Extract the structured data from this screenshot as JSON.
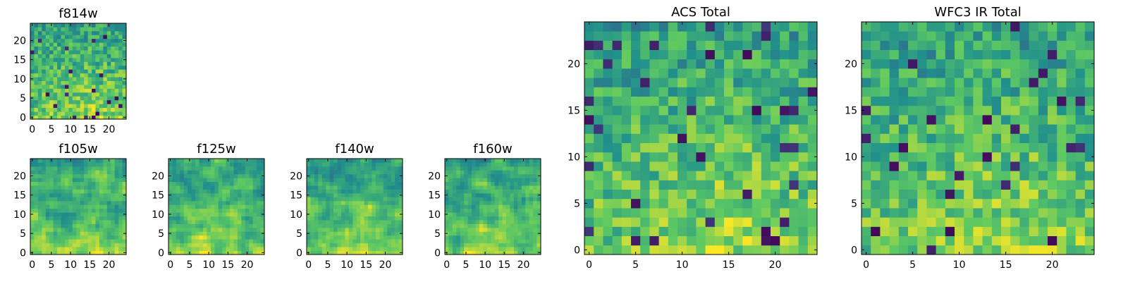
{
  "chart_data": [
    {
      "type": "heatmap",
      "title": "f814w",
      "x_ticks": [
        0,
        5,
        10,
        15,
        20
      ],
      "y_ticks": [
        0,
        5,
        10,
        15,
        20
      ],
      "xlim": [
        -0.5,
        24.5
      ],
      "ylim": [
        -0.5,
        24.5
      ],
      "grid_size": 25,
      "colormap": "viridis"
    },
    {
      "type": "heatmap",
      "title": "f105w",
      "x_ticks": [
        0,
        5,
        10,
        15,
        20
      ],
      "y_ticks": [
        0,
        5,
        10,
        15,
        20
      ],
      "xlim": [
        -0.5,
        24.5
      ],
      "ylim": [
        -0.5,
        24.5
      ],
      "grid_size": 25,
      "colormap": "viridis"
    },
    {
      "type": "heatmap",
      "title": "f125w",
      "x_ticks": [
        0,
        5,
        10,
        15,
        20
      ],
      "y_ticks": [
        0,
        5,
        10,
        15,
        20
      ],
      "xlim": [
        -0.5,
        24.5
      ],
      "ylim": [
        -0.5,
        24.5
      ],
      "grid_size": 25,
      "colormap": "viridis"
    },
    {
      "type": "heatmap",
      "title": "f140w",
      "x_ticks": [
        0,
        5,
        10,
        15,
        20
      ],
      "y_ticks": [
        0,
        5,
        10,
        15,
        20
      ],
      "xlim": [
        -0.5,
        24.5
      ],
      "ylim": [
        -0.5,
        24.5
      ],
      "grid_size": 25,
      "colormap": "viridis"
    },
    {
      "type": "heatmap",
      "title": "f160w",
      "x_ticks": [
        0,
        5,
        10,
        15,
        20
      ],
      "y_ticks": [
        0,
        5,
        10,
        15,
        20
      ],
      "xlim": [
        -0.5,
        24.5
      ],
      "ylim": [
        -0.5,
        24.5
      ],
      "grid_size": 25,
      "colormap": "viridis"
    },
    {
      "type": "heatmap",
      "title": "ACS Total",
      "x_ticks": [
        0,
        5,
        10,
        15,
        20
      ],
      "y_ticks": [
        0,
        5,
        10,
        15,
        20
      ],
      "xlim": [
        -0.5,
        24.5
      ],
      "ylim": [
        -0.5,
        24.5
      ],
      "grid_size": 25,
      "colormap": "viridis"
    },
    {
      "type": "heatmap",
      "title": "WFC3 IR Total",
      "x_ticks": [
        0,
        5,
        10,
        15,
        20
      ],
      "y_ticks": [
        0,
        5,
        10,
        15,
        20
      ],
      "xlim": [
        -0.5,
        24.5
      ],
      "ylim": [
        -0.5,
        24.5
      ],
      "grid_size": 25,
      "colormap": "viridis"
    }
  ],
  "colors": {
    "viridis": [
      "#440154",
      "#3b528b",
      "#21918c",
      "#5ec962",
      "#fde725"
    ],
    "axes": "#000000"
  }
}
